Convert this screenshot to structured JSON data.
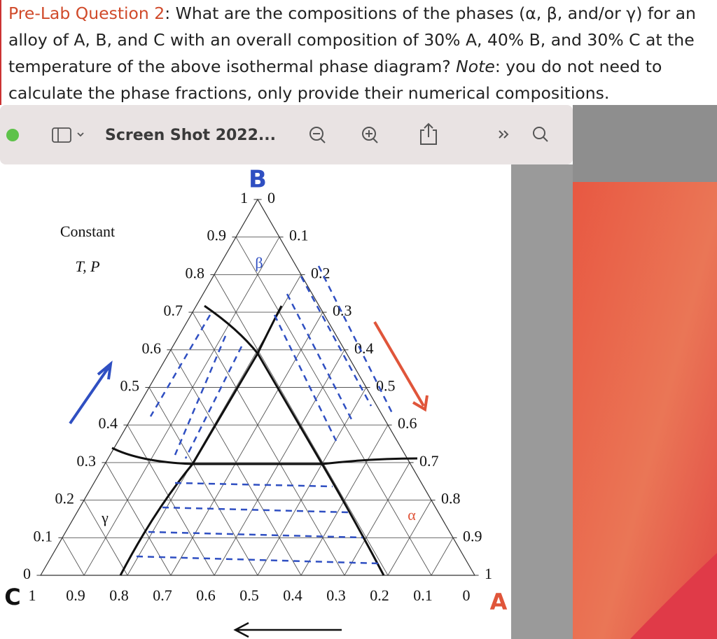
{
  "question": {
    "label": "Pre-Lab Question 2",
    "text_1": ": What are the compositions of the phases (α, β, and/or γ) for an alloy of A, B, and C with an overall composition of 30% A, 40% B, and 30% C at the temperature of the above isothermal phase diagram? ",
    "note": "Note",
    "text_2": ": you do not need to calculate the phase fractions, only provide their numerical compositions."
  },
  "window": {
    "title": "Screen Shot 2022..."
  },
  "diagram": {
    "vertex_b": "B",
    "vertex_c": "C",
    "vertex_a": "A",
    "condition_1": "Constant",
    "condition_2": "T, P",
    "phase_beta": "β",
    "phase_gamma": "γ",
    "phase_alpha": "α",
    "left_ticks": [
      "0",
      "0.1",
      "0.2",
      "0.3",
      "0.4",
      "0.5",
      "0.6",
      "0.7",
      "0.8",
      "0.9",
      "1"
    ],
    "right_ticks": [
      "0",
      "0.1",
      "0.2",
      "0.3",
      "0.4",
      "0.5",
      "0.6",
      "0.7",
      "0.8",
      "0.9",
      "1"
    ],
    "bottom_ticks": [
      "1",
      "0.9",
      "0.8",
      "0.7",
      "0.6",
      "0.5",
      "0.4",
      "0.3",
      "0.2",
      "0.1",
      "0"
    ]
  }
}
